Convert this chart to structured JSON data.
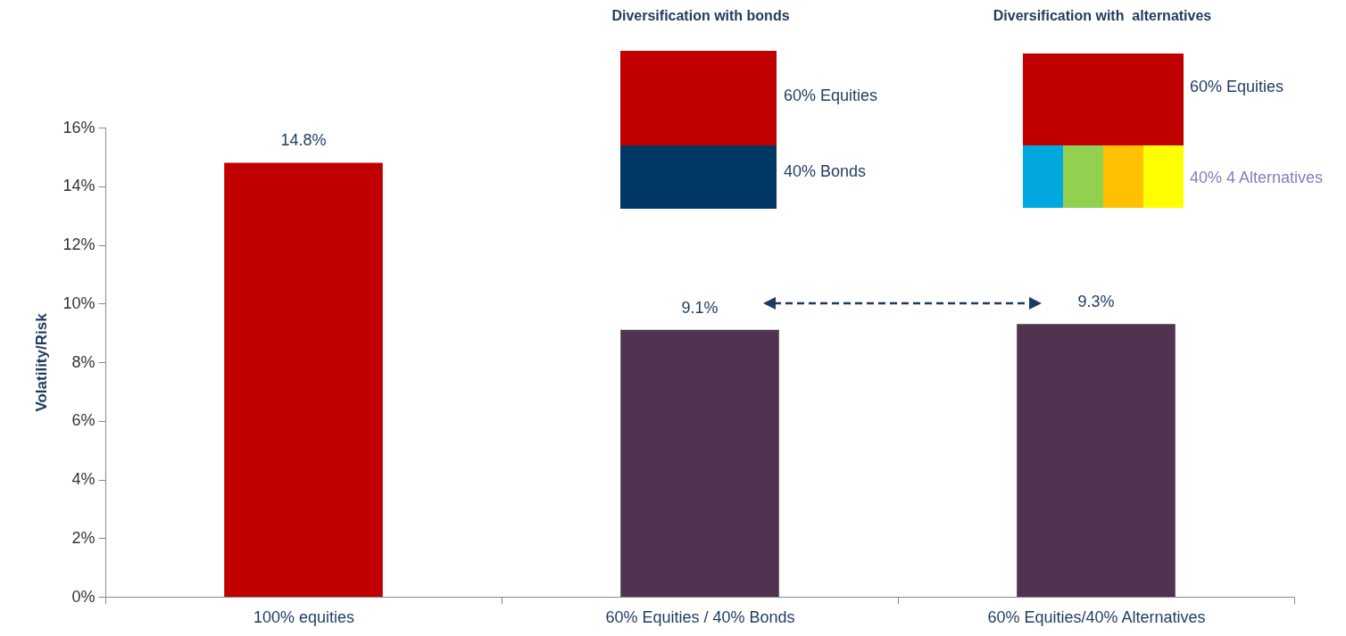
{
  "chart_data": {
    "type": "bar",
    "ylabel": "Volatility/Risk",
    "categories": [
      "100% equities",
      "60% Equities / 40% Bonds",
      "60% Equities/40% Alternatives"
    ],
    "values": [
      14.8,
      9.1,
      9.3
    ],
    "colors": [
      "#c00000",
      "#4f3350",
      "#4f3350"
    ],
    "value_labels": [
      "14.8%",
      "9.1%",
      "9.3%"
    ],
    "ylim": [
      0,
      16
    ],
    "yticks": [
      {
        "value": 0,
        "label": "0%"
      },
      {
        "value": 2,
        "label": "2%"
      },
      {
        "value": 4,
        "label": "4%"
      },
      {
        "value": 6,
        "label": "6%"
      },
      {
        "value": 8,
        "label": "8%"
      },
      {
        "value": 10,
        "label": "10%"
      },
      {
        "value": 12,
        "label": "12%"
      },
      {
        "value": 14,
        "label": "14%"
      },
      {
        "value": 16,
        "label": "16%"
      }
    ],
    "grid": false,
    "annotations": [
      "Diversification with bonds",
      "Diversification with  alternatives",
      "60% Equities",
      "40% Bonds",
      "60% Equities",
      "40% 4 Alternatives"
    ]
  }
}
